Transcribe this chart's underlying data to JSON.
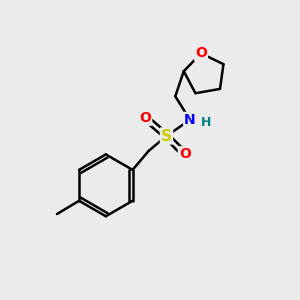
{
  "bg_color": "#ebebeb",
  "bond_color": "#000000",
  "bond_width": 1.8,
  "atom_colors": {
    "O": "#ff0000",
    "N": "#0000ff",
    "S": "#cccc00",
    "H": "#008080",
    "C": "#000000"
  },
  "font_size_atom": 10,
  "font_size_H": 9,
  "figsize": [
    3.0,
    3.0
  ],
  "dpi": 100,
  "xlim": [
    0,
    10
  ],
  "ylim": [
    0,
    10
  ]
}
